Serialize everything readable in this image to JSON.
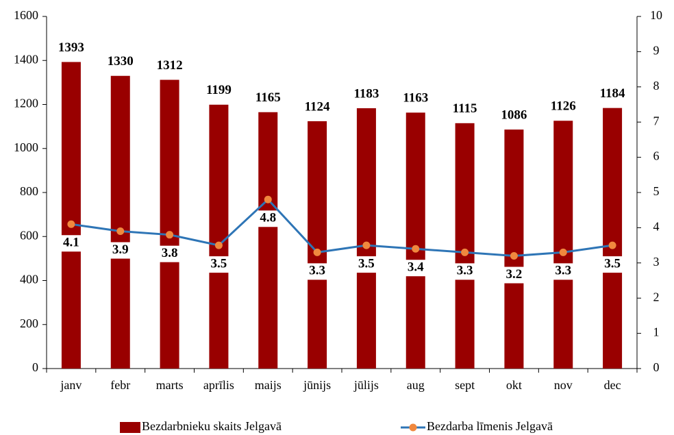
{
  "chart_data": {
    "type": "bar-line",
    "categories": [
      "janv",
      "febr",
      "marts",
      "aprīlis",
      "maijs",
      "jūnijs",
      "jūlijs",
      "aug",
      "sept",
      "okt",
      "nov",
      "dec"
    ],
    "series": [
      {
        "name": "Bezdarbnieku skaits Jelgavā",
        "type": "bar",
        "color": "#990000",
        "values": [
          1393,
          1330,
          1312,
          1199,
          1165,
          1124,
          1183,
          1163,
          1115,
          1086,
          1126,
          1184
        ]
      },
      {
        "name": "Bezdarba līmenis Jelgavā",
        "type": "line",
        "axis": "y2",
        "color": "#2e75b6",
        "marker_color": "#f0883e",
        "values": [
          4.1,
          3.9,
          3.8,
          3.5,
          4.8,
          3.3,
          3.5,
          3.4,
          3.3,
          3.2,
          3.3,
          3.5
        ]
      }
    ],
    "ylim": [
      0,
      1600
    ],
    "yticks": [
      0,
      200,
      400,
      600,
      800,
      1000,
      1200,
      1400,
      1600
    ],
    "y2lim": [
      0,
      10
    ],
    "y2ticks": [
      0,
      1,
      2,
      3,
      4,
      5,
      6,
      7,
      8,
      9,
      10
    ],
    "legend": "bottom"
  }
}
